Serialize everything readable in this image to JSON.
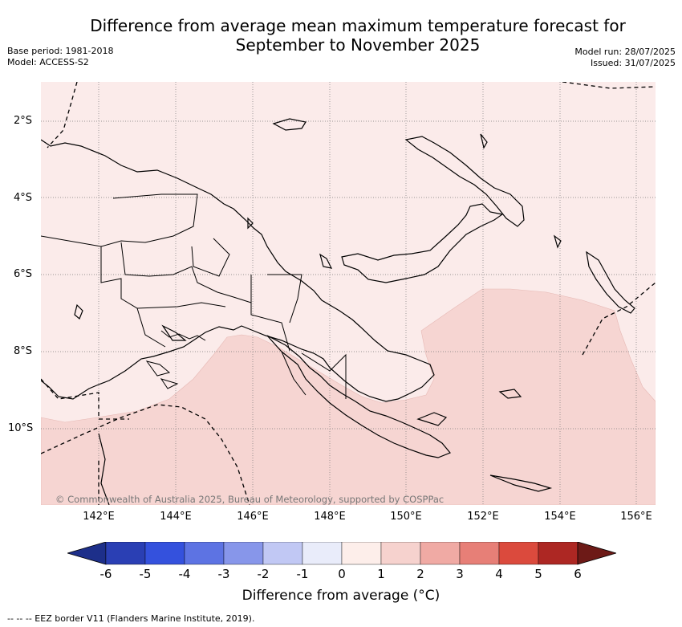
{
  "header": {
    "title_line1": "Difference from average mean maximum temperature forecast for",
    "title_line2": "September to November 2025",
    "base_period": "Base period: 1981-2018",
    "model": "Model: ACCESS-S2",
    "model_run": "Model run: 28/07/2025",
    "issued": "Issued: 31/07/2025"
  },
  "map": {
    "lat_labels": [
      "2°S",
      "4°S",
      "6°S",
      "8°S",
      "10°S"
    ],
    "lon_labels": [
      "142°E",
      "144°E",
      "146°E",
      "148°E",
      "150°E",
      "152°E",
      "154°E",
      "156°E"
    ],
    "copyright": "© Commonwealth of Australia 2025, Bureau of Meteorology, supported by COSPPac",
    "colors": {
      "category_0_1": "#fbebea",
      "category_1_2": "#f6d5d2",
      "land_outline": "#000000",
      "grid": "#777777",
      "eez": "#000000"
    }
  },
  "colorbar": {
    "ticks": [
      "-6",
      "-5",
      "-4",
      "-3",
      "-2",
      "-1",
      "0",
      "1",
      "2",
      "3",
      "4",
      "5",
      "6"
    ],
    "colors": [
      "#1d2f8a",
      "#2a3fb4",
      "#3451dd",
      "#5d73e3",
      "#8796ea",
      "#c1c8f4",
      "#e9ecfa",
      "#fdeeea",
      "#f6d2ce",
      "#f0aaa4",
      "#e77f77",
      "#db4a3d",
      "#ad2723",
      "#6d1a17"
    ],
    "label": "Difference from average (°C)"
  },
  "footnote": "--  --  -- EEZ border V11 (Flanders Marine Institute, 2019)."
}
